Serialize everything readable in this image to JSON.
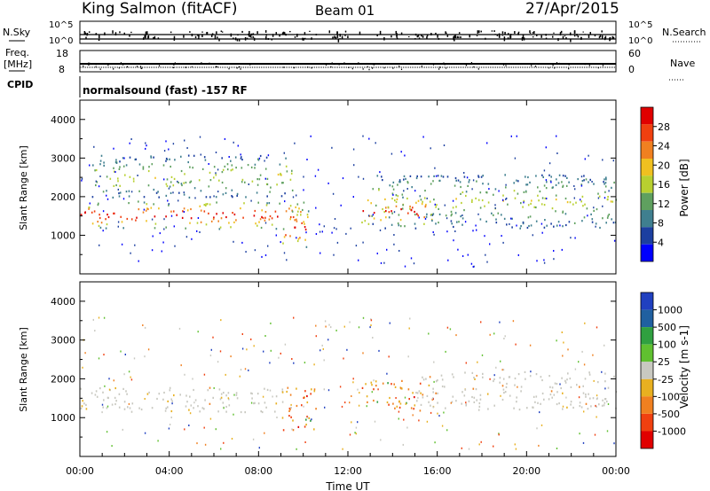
{
  "header": {
    "station": "King Salmon (fitACF)",
    "beam": "Beam 01",
    "date": "27/Apr/2015"
  },
  "top_panels": {
    "nsky_label": "N.Sky",
    "nsky_top": "10^5",
    "nsky_bottom": "10^0",
    "nsearch_label": "N.Search",
    "nsearch_top": "10^5",
    "nsearch_bottom": "10^0",
    "freq_label_1": "Freq.",
    "freq_label_2": "[MHz]",
    "freq_ticks": [
      "18",
      "8"
    ],
    "nave_label": "Nave",
    "nave_ticks": [
      "60",
      "0"
    ],
    "cpid_label": "CPID",
    "cpid_text": "normalsound (fast) -157 RF"
  },
  "colors": {
    "power_scale": [
      "#0000ff",
      "#1c3fa0",
      "#3f7f8f",
      "#5fa05f",
      "#b8d030",
      "#f0c020",
      "#f08020",
      "#f04010",
      "#e00000"
    ],
    "velocity_scale": [
      "#2040c0",
      "#2060a0",
      "#30a040",
      "#60c030",
      "#c8c8c0",
      "#e8b020",
      "#f08020",
      "#f04010",
      "#e00000"
    ]
  },
  "chart_data": [
    {
      "type": "heatmap",
      "title": "Power",
      "xlabel": "",
      "ylabel": "Slant Range [km]",
      "xlim": [
        0,
        24
      ],
      "ylim": [
        0,
        4500
      ],
      "ytick_labels": [
        "1000",
        "2000",
        "3000",
        "4000"
      ],
      "ytick_values": [
        1000,
        2000,
        3000,
        4000
      ],
      "colorbar": {
        "label": "Power [dB]",
        "tick_labels": [
          "4",
          "8",
          "12",
          "16",
          "20",
          "24",
          "28"
        ],
        "tick_values": [
          4,
          8,
          12,
          16,
          20,
          24,
          28
        ],
        "range": [
          0,
          32
        ]
      },
      "features": [
        {
          "t0": 0.0,
          "t1": 10.3,
          "r0": 1180,
          "r1": 1900,
          "level": "high"
        },
        {
          "t0": 0.5,
          "t1": 9.5,
          "r0": 2000,
          "r1": 3100,
          "level": "low"
        },
        {
          "t0": 9.0,
          "t1": 10.3,
          "r0": 700,
          "r1": 1700,
          "level": "high"
        },
        {
          "t0": 12.6,
          "t1": 15.8,
          "r0": 1250,
          "r1": 2050,
          "level": "high"
        },
        {
          "t0": 13.0,
          "t1": 24.0,
          "r0": 1200,
          "r1": 2600,
          "level": "low"
        }
      ]
    },
    {
      "type": "heatmap",
      "title": "Velocity",
      "xlabel": "Time UT",
      "ylabel": "Slant Range [km]",
      "xlim": [
        0,
        24
      ],
      "ylim": [
        0,
        4500
      ],
      "xtick_labels": [
        "00:00",
        "04:00",
        "08:00",
        "12:00",
        "16:00",
        "20:00",
        "00:00"
      ],
      "xtick_values": [
        0,
        4,
        8,
        12,
        16,
        20,
        24
      ],
      "ytick_labels": [
        "1000",
        "2000",
        "3000",
        "4000"
      ],
      "ytick_values": [
        1000,
        2000,
        3000,
        4000
      ],
      "colorbar": {
        "label": "Velocity [m s-1]",
        "tick_labels": [
          "1000",
          "500",
          "100",
          "25",
          "-25",
          "-100",
          "-500",
          "-1000"
        ],
        "tick_values": [
          1000,
          500,
          100,
          25,
          -25,
          -100,
          -500,
          -1000
        ]
      },
      "features": [
        {
          "t0": 0.0,
          "t1": 9.5,
          "r0": 1150,
          "r1": 1800,
          "level": "ground"
        },
        {
          "t0": 9.0,
          "t1": 10.6,
          "r0": 700,
          "r1": 1800,
          "level": "negative"
        },
        {
          "t0": 12.6,
          "t1": 15.8,
          "r0": 1250,
          "r1": 2000,
          "level": "negative"
        },
        {
          "t0": 15.0,
          "t1": 24.0,
          "r0": 1200,
          "r1": 2200,
          "level": "ground"
        }
      ]
    }
  ]
}
